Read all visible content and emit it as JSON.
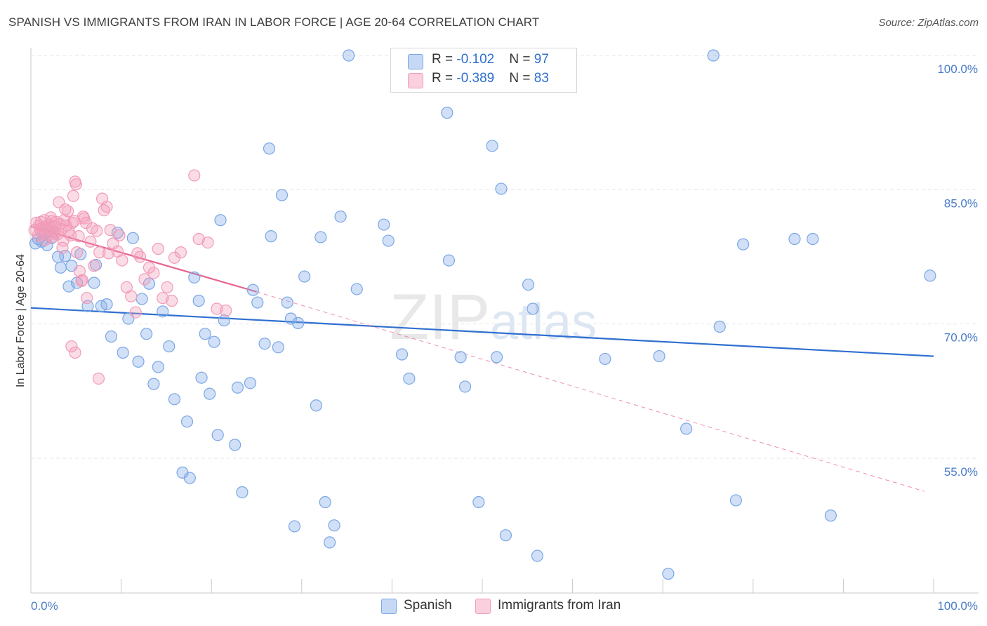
{
  "title": "SPANISH VS IMMIGRANTS FROM IRAN IN LABOR FORCE | AGE 20-64 CORRELATION CHART",
  "source": "Source: ZipAtlas.com",
  "watermark": {
    "zip": "ZIP",
    "atlas": "atlas"
  },
  "legend_top": {
    "rows": [
      {
        "r_label": "R = ",
        "r_value": "-0.102",
        "n_label": "N = ",
        "n_value": "97"
      },
      {
        "r_label": "R = ",
        "r_value": "-0.389",
        "n_label": "N = ",
        "n_value": "83"
      }
    ]
  },
  "chart_data": {
    "type": "scatter",
    "title": "SPANISH VS IMMIGRANTS FROM IRAN IN LABOR FORCE | AGE 20-64 CORRELATION CHART",
    "xlabel": "",
    "ylabel": "In Labor Force | Age 20-64",
    "xlim": [
      0,
      100
    ],
    "ylim": [
      40,
      101
    ],
    "x_tick_labels": [
      "0.0%",
      "100.0%"
    ],
    "y_ticks": [
      55,
      70,
      85,
      100
    ],
    "y_tick_labels": [
      "55.0%",
      "70.0%",
      "85.0%",
      "100.0%"
    ],
    "grid": true,
    "legend": "bottom-center",
    "colors": {
      "Spanish": "#7aa7e6",
      "Immigrants from Iran": "#f29bb8",
      "spanish_line": "#2f6fd0",
      "iran_line": "#e8628f"
    },
    "series": [
      {
        "name": "Spanish",
        "R": -0.102,
        "N": 97,
        "trend": {
          "x": [
            0,
            100
          ],
          "y": [
            71.8,
            66.4
          ]
        },
        "points": [
          [
            0.5,
            79.0
          ],
          [
            0.8,
            79.5
          ],
          [
            1.2,
            79.2
          ],
          [
            1.5,
            80.1
          ],
          [
            1.8,
            78.8
          ],
          [
            2.0,
            80.3
          ],
          [
            2.3,
            79.6
          ],
          [
            3.0,
            77.5
          ],
          [
            3.3,
            76.3
          ],
          [
            3.8,
            77.6
          ],
          [
            4.2,
            74.2
          ],
          [
            4.5,
            76.5
          ],
          [
            5.1,
            74.6
          ],
          [
            5.5,
            77.8
          ],
          [
            6.3,
            72.0
          ],
          [
            7.0,
            74.6
          ],
          [
            7.2,
            76.6
          ],
          [
            7.8,
            72.0
          ],
          [
            8.4,
            72.2
          ],
          [
            8.9,
            68.6
          ],
          [
            9.6,
            80.2
          ],
          [
            10.2,
            66.8
          ],
          [
            10.8,
            70.6
          ],
          [
            11.3,
            79.6
          ],
          [
            11.9,
            65.8
          ],
          [
            12.3,
            72.8
          ],
          [
            12.8,
            68.9
          ],
          [
            13.1,
            74.5
          ],
          [
            13.6,
            63.3
          ],
          [
            14.1,
            65.2
          ],
          [
            14.6,
            71.4
          ],
          [
            15.3,
            67.5
          ],
          [
            15.9,
            61.6
          ],
          [
            16.8,
            53.4
          ],
          [
            17.3,
            59.1
          ],
          [
            17.6,
            52.8
          ],
          [
            18.1,
            75.2
          ],
          [
            18.6,
            72.6
          ],
          [
            18.9,
            64.0
          ],
          [
            19.3,
            68.9
          ],
          [
            19.8,
            62.2
          ],
          [
            20.3,
            68.0
          ],
          [
            20.7,
            57.6
          ],
          [
            21.0,
            81.6
          ],
          [
            21.4,
            70.4
          ],
          [
            22.6,
            56.5
          ],
          [
            22.9,
            62.9
          ],
          [
            23.4,
            51.2
          ],
          [
            24.3,
            63.4
          ],
          [
            24.6,
            73.8
          ],
          [
            25.1,
            72.4
          ],
          [
            25.9,
            67.8
          ],
          [
            26.4,
            89.6
          ],
          [
            26.6,
            79.8
          ],
          [
            27.4,
            67.4
          ],
          [
            27.8,
            84.4
          ],
          [
            28.4,
            72.4
          ],
          [
            28.8,
            70.6
          ],
          [
            29.2,
            47.4
          ],
          [
            29.6,
            70.1
          ],
          [
            30.3,
            75.3
          ],
          [
            31.6,
            60.9
          ],
          [
            32.1,
            79.7
          ],
          [
            32.6,
            50.1
          ],
          [
            33.1,
            45.6
          ],
          [
            33.6,
            47.5
          ],
          [
            34.3,
            82.0
          ],
          [
            35.2,
            100.0
          ],
          [
            36.1,
            73.9
          ],
          [
            39.1,
            81.1
          ],
          [
            39.6,
            79.3
          ],
          [
            41.1,
            66.6
          ],
          [
            41.9,
            63.9
          ],
          [
            45.6,
            100.0
          ],
          [
            46.1,
            93.6
          ],
          [
            46.3,
            77.1
          ],
          [
            47.6,
            66.3
          ],
          [
            48.1,
            63.0
          ],
          [
            49.6,
            50.1
          ],
          [
            51.1,
            89.9
          ],
          [
            51.6,
            66.3
          ],
          [
            52.1,
            85.1
          ],
          [
            52.6,
            46.4
          ],
          [
            55.1,
            74.4
          ],
          [
            55.6,
            71.7
          ],
          [
            56.1,
            44.1
          ],
          [
            63.6,
            66.1
          ],
          [
            69.6,
            66.4
          ],
          [
            70.6,
            42.1
          ],
          [
            72.6,
            58.3
          ],
          [
            75.6,
            100.0
          ],
          [
            76.3,
            69.7
          ],
          [
            78.1,
            50.3
          ],
          [
            78.9,
            78.9
          ],
          [
            84.6,
            79.5
          ],
          [
            86.6,
            79.5
          ],
          [
            88.6,
            48.6
          ],
          [
            99.6,
            75.4
          ]
        ]
      },
      {
        "name": "Immigrants from Iran",
        "R": -0.389,
        "N": 83,
        "trend": {
          "x": [
            0,
            25
          ],
          "y": [
            80.9,
            73.6
          ]
        },
        "trend_dashed": {
          "x": [
            25,
            99
          ],
          "y": [
            73.6,
            51.3
          ]
        },
        "points": [
          [
            0.4,
            80.5
          ],
          [
            0.6,
            81.3
          ],
          [
            0.8,
            79.9
          ],
          [
            1.0,
            80.6
          ],
          [
            1.1,
            81.4
          ],
          [
            1.3,
            80.1
          ],
          [
            1.5,
            81.6
          ],
          [
            1.6,
            79.4
          ],
          [
            1.8,
            80.8
          ],
          [
            2.0,
            81.1
          ],
          [
            2.1,
            80.4
          ],
          [
            2.3,
            81.5
          ],
          [
            2.4,
            79.7
          ],
          [
            2.6,
            80.9
          ],
          [
            2.8,
            81.4
          ],
          [
            2.9,
            80.0
          ],
          [
            3.1,
            83.6
          ],
          [
            3.2,
            81.2
          ],
          [
            3.4,
            80.6
          ],
          [
            3.6,
            79.3
          ],
          [
            3.7,
            81.6
          ],
          [
            3.9,
            81.0
          ],
          [
            4.1,
            82.6
          ],
          [
            4.2,
            80.4
          ],
          [
            4.4,
            79.9
          ],
          [
            4.6,
            81.3
          ],
          [
            4.8,
            81.5
          ],
          [
            4.9,
            85.9
          ],
          [
            5.1,
            78.0
          ],
          [
            5.3,
            79.8
          ],
          [
            5.4,
            75.9
          ],
          [
            5.6,
            74.8
          ],
          [
            5.8,
            82.0
          ],
          [
            6.1,
            81.3
          ],
          [
            6.6,
            79.2
          ],
          [
            7.0,
            76.5
          ],
          [
            7.3,
            80.4
          ],
          [
            7.6,
            78.0
          ],
          [
            7.9,
            84.0
          ],
          [
            8.1,
            82.7
          ],
          [
            8.4,
            83.1
          ],
          [
            8.8,
            80.5
          ],
          [
            9.1,
            79.0
          ],
          [
            9.6,
            78.1
          ],
          [
            10.1,
            77.1
          ],
          [
            10.6,
            74.1
          ],
          [
            11.1,
            73.1
          ],
          [
            11.6,
            71.3
          ],
          [
            12.1,
            77.5
          ],
          [
            12.6,
            75.0
          ],
          [
            13.1,
            76.3
          ],
          [
            13.6,
            75.7
          ],
          [
            14.1,
            78.4
          ],
          [
            14.6,
            72.9
          ],
          [
            15.1,
            74.1
          ],
          [
            15.6,
            72.6
          ],
          [
            15.9,
            77.4
          ],
          [
            16.6,
            78.0
          ],
          [
            18.1,
            86.6
          ],
          [
            18.6,
            79.5
          ],
          [
            19.6,
            79.1
          ],
          [
            20.6,
            71.7
          ],
          [
            21.6,
            71.5
          ],
          [
            4.5,
            67.5
          ],
          [
            4.9,
            66.8
          ],
          [
            7.5,
            63.9
          ],
          [
            5.7,
            74.9
          ],
          [
            6.2,
            72.9
          ],
          [
            3.5,
            78.5
          ],
          [
            2.7,
            80.2
          ],
          [
            1.9,
            79.9
          ],
          [
            1.4,
            80.8
          ],
          [
            0.9,
            81.0
          ],
          [
            2.2,
            81.9
          ],
          [
            3.8,
            82.8
          ],
          [
            4.7,
            84.3
          ],
          [
            5.9,
            81.8
          ],
          [
            6.8,
            80.7
          ],
          [
            8.6,
            77.9
          ],
          [
            9.8,
            79.9
          ],
          [
            11.8,
            77.9
          ],
          [
            5.0,
            85.6
          ],
          [
            2.5,
            80.3
          ]
        ]
      }
    ]
  },
  "bottom_legend": [
    {
      "label": "Spanish"
    },
    {
      "label": "Immigrants from Iran"
    }
  ]
}
